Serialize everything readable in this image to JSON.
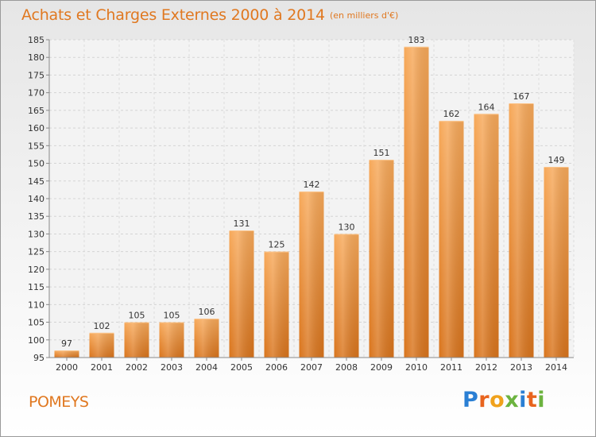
{
  "header": {
    "title": "Achats et Charges Externes 2000 à 2014",
    "subtitle": "(en milliers d'€)"
  },
  "commune_name": "POMEYS",
  "brand": {
    "letters": [
      "P",
      "r",
      "o",
      "x",
      "i",
      "t",
      "i"
    ],
    "colors": [
      "#2a7fd4",
      "#e8641e",
      "#f0a21c",
      "#6cb33f",
      "#2a7fd4",
      "#e8641e",
      "#6cb33f"
    ]
  },
  "chart_data": {
    "type": "bar",
    "title": "Achats et Charges Externes 2000 à 2014",
    "subtitle": "(en milliers d'€)",
    "xlabel": "",
    "ylabel": "",
    "categories": [
      "2000",
      "2001",
      "2002",
      "2003",
      "2004",
      "2005",
      "2006",
      "2007",
      "2008",
      "2009",
      "2010",
      "2011",
      "2012",
      "2013",
      "2014"
    ],
    "values": [
      97,
      102,
      105,
      105,
      106,
      131,
      125,
      142,
      130,
      151,
      183,
      162,
      164,
      167,
      149
    ],
    "ylim": [
      95,
      185
    ],
    "yticks": [
      95,
      100,
      105,
      110,
      115,
      120,
      125,
      130,
      135,
      140,
      145,
      150,
      155,
      160,
      165,
      170,
      175,
      180,
      185
    ],
    "grid": true,
    "bar_color": "#f29a3f",
    "legend": "none"
  }
}
